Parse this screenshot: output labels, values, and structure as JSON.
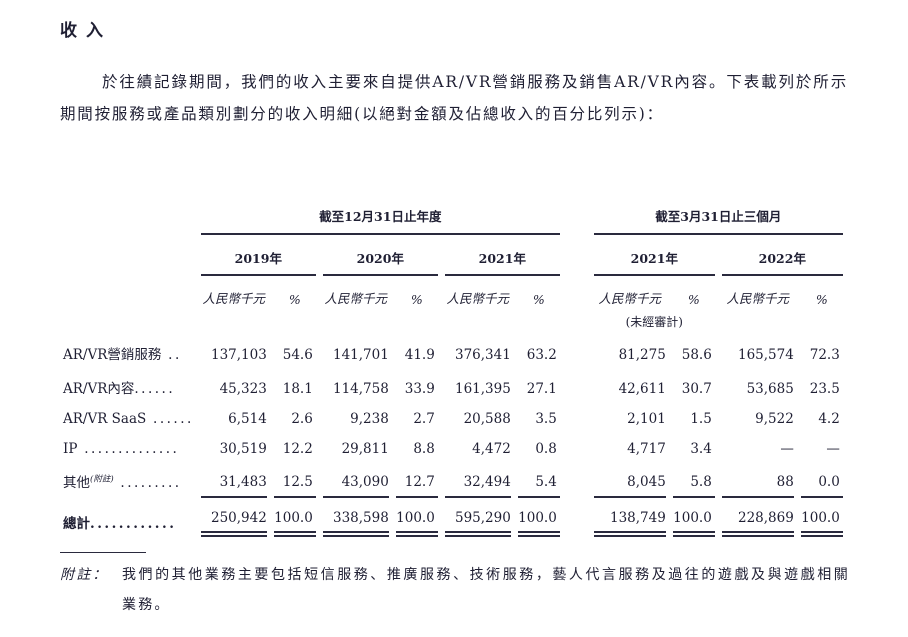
{
  "title": "收入",
  "intro": "於往績記錄期間，我們的收入主要來自提供AR/VR營銷服務及銷售AR/VR內容。下表載列於所示期間按服務或產品類別劃分的收入明細(以絕對金額及佔總收入的百分比列示)：",
  "colors": {
    "text": "#1f1f33",
    "rule": "#2a2a3e",
    "background": "#ffffff"
  },
  "table": {
    "group1": "截至12月31日止年度",
    "group2": "截至3月31日止三個月",
    "years": [
      "2019年",
      "2020年",
      "2021年",
      "2021年",
      "2022年"
    ],
    "unit_label": "人民幣千元",
    "pct_label": "%",
    "unaudited": "(未經審計)",
    "rows": [
      {
        "label": "AR/VR營銷服務",
        "dots": " ..",
        "values": [
          "137,103",
          "54.6",
          "141,701",
          "41.9",
          "376,341",
          "63.2",
          "81,275",
          "58.6",
          "165,574",
          "72.3"
        ]
      },
      {
        "label": "AR/VR內容",
        "dots": "......",
        "values": [
          "45,323",
          "18.1",
          "114,758",
          "33.9",
          "161,395",
          "27.1",
          "42,611",
          "30.7",
          "53,685",
          "23.5"
        ]
      },
      {
        "label": "AR/VR SaaS",
        "dots": " ......",
        "values": [
          "6,514",
          "2.6",
          "9,238",
          "2.7",
          "20,588",
          "3.5",
          "2,101",
          "1.5",
          "9,522",
          "4.2"
        ]
      },
      {
        "label": "IP",
        "dots": " ..............",
        "values": [
          "30,519",
          "12.2",
          "29,811",
          "8.8",
          "4,472",
          "0.8",
          "4,717",
          "3.4",
          "—",
          "—"
        ]
      },
      {
        "label": "其他",
        "sup": "(附註)",
        "dots": " .........",
        "values": [
          "31,483",
          "12.5",
          "43,090",
          "12.7",
          "32,494",
          "5.4",
          "8,045",
          "5.8",
          "88",
          "0.0"
        ]
      }
    ],
    "total": {
      "label": "總計",
      "dots": "............",
      "values": [
        "250,942",
        "100.0",
        "338,598",
        "100.0",
        "595,290",
        "100.0",
        "138,749",
        "100.0",
        "228,869",
        "100.0"
      ]
    }
  },
  "footnote": {
    "label": "附註：",
    "text": "我們的其他業務主要包括短信服務、推廣服務、技術服務，藝人代言服務及過往的遊戲及與遊戲相關業務。"
  }
}
